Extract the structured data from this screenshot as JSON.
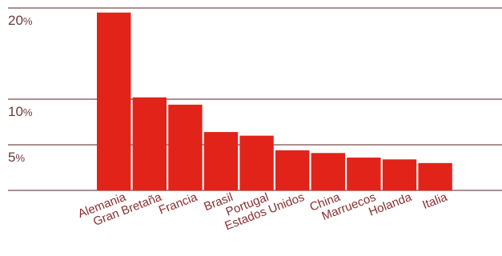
{
  "chart_data": {
    "type": "bar",
    "title": "",
    "xlabel": "",
    "ylabel": "",
    "categories": [
      "Alemania",
      "Gran Bretaña",
      "Francia",
      "Brasil",
      "Portugal",
      "Estados Unidos",
      "China",
      "Marruecos",
      "Holanda",
      "Italia"
    ],
    "values": [
      19.5,
      10.2,
      9.4,
      6.4,
      6.0,
      4.4,
      4.1,
      3.6,
      3.4,
      3.0
    ],
    "yticks": [
      {
        "value": 20,
        "label": "20",
        "unit": "%"
      },
      {
        "value": 10,
        "label": "10",
        "unit": "%"
      },
      {
        "value": 5,
        "label": "5",
        "unit": "%"
      }
    ],
    "ylim": [
      0,
      20
    ],
    "grid": true,
    "legend": "none",
    "colors": {
      "bar": "#e2231a",
      "grid": "#7a4a4a",
      "text": "#6b3a3a"
    }
  }
}
